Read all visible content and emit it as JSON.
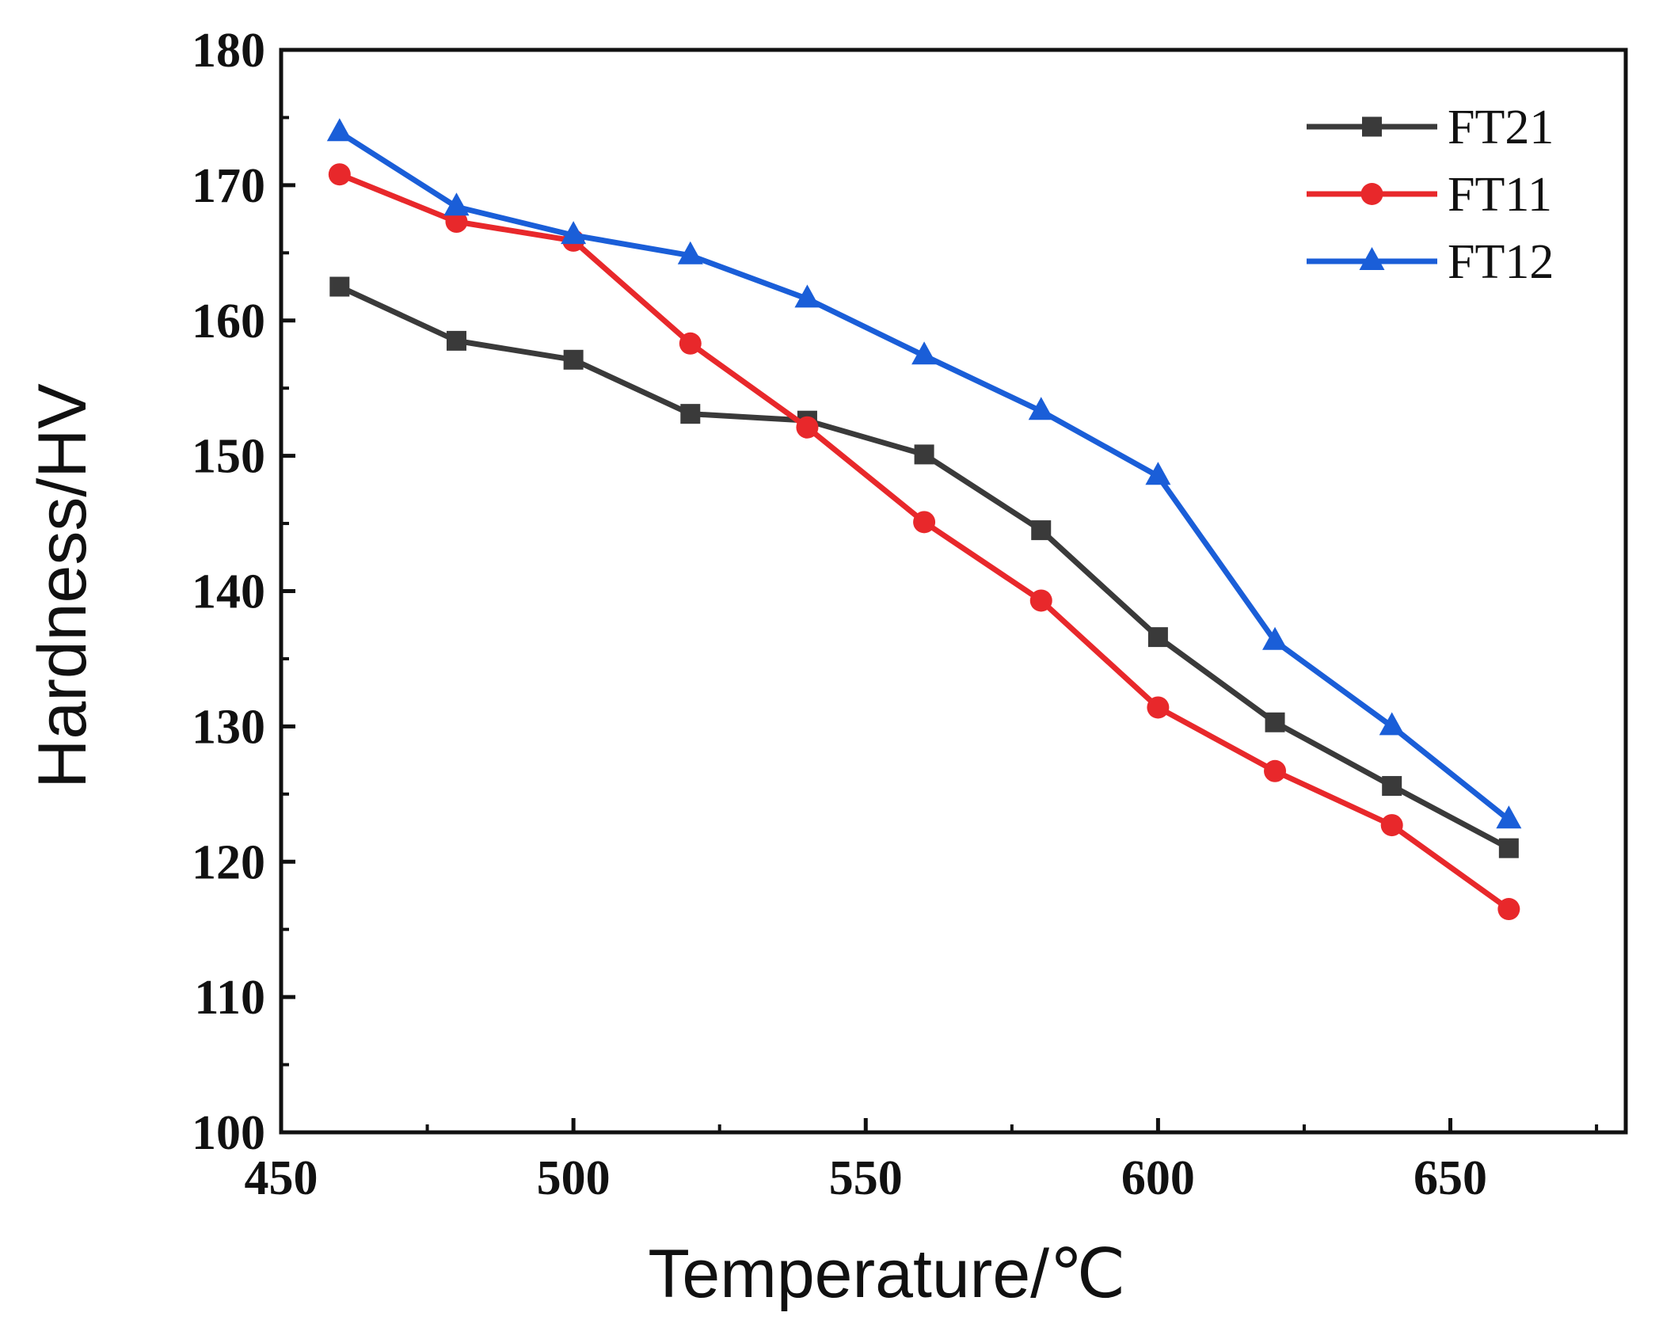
{
  "chart_data": {
    "type": "line",
    "title": "",
    "xlabel": "Temperature/℃",
    "ylabel": "Hardness/HV",
    "xlim": [
      450,
      680
    ],
    "ylim": [
      100,
      180
    ],
    "xticks": [
      450,
      500,
      550,
      600,
      650
    ],
    "yticks": [
      100,
      110,
      120,
      130,
      140,
      150,
      160,
      170,
      180
    ],
    "x_tick_labels": [
      "450",
      "500",
      "550",
      "600",
      "650"
    ],
    "y_tick_labels": [
      "100",
      "110",
      "120",
      "130",
      "140",
      "150",
      "160",
      "170",
      "180"
    ],
    "grid": false,
    "legend_position": "top-right",
    "x": [
      460,
      480,
      500,
      520,
      540,
      560,
      580,
      600,
      620,
      640,
      660
    ],
    "series": [
      {
        "name": "FT21",
        "color": "#3a3a3a",
        "marker": "square",
        "values": [
          162.5,
          158.5,
          157.1,
          153.1,
          152.6,
          150.1,
          144.5,
          136.6,
          130.3,
          125.6,
          121.0
        ]
      },
      {
        "name": "FT11",
        "color": "#e8282b",
        "marker": "circle",
        "values": [
          170.8,
          167.3,
          165.9,
          158.3,
          152.1,
          145.1,
          139.3,
          131.4,
          126.7,
          122.7,
          116.5
        ]
      },
      {
        "name": "FT12",
        "color": "#1a5ed8",
        "marker": "triangle",
        "values": [
          173.9,
          168.4,
          166.3,
          164.8,
          161.6,
          157.4,
          153.3,
          148.5,
          136.3,
          130.0,
          123.1
        ]
      }
    ]
  }
}
